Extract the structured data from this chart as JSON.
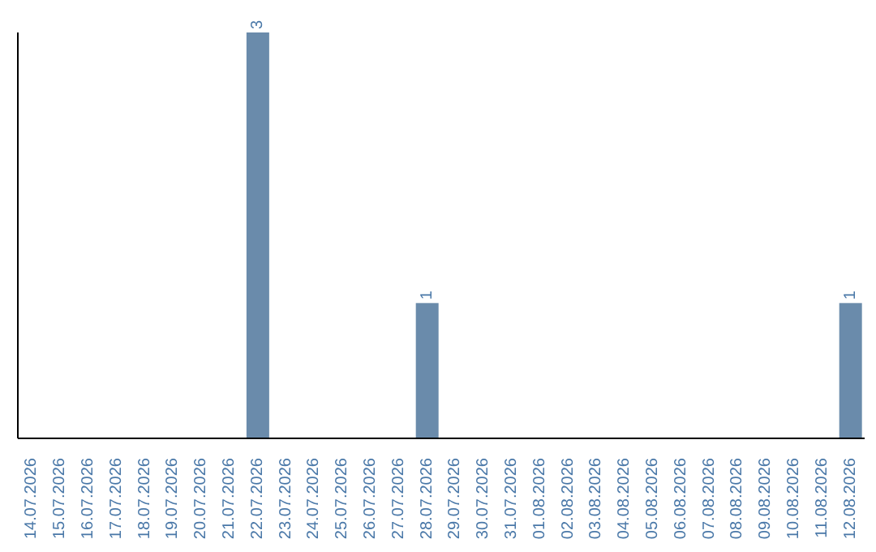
{
  "chart_data": {
    "type": "bar",
    "categories": [
      "14.07.2026",
      "15.07.2026",
      "16.07.2026",
      "17.07.2026",
      "18.07.2026",
      "19.07.2026",
      "20.07.2026",
      "21.07.2026",
      "22.07.2026",
      "23.07.2026",
      "24.07.2026",
      "25.07.2026",
      "26.07.2026",
      "27.07.2026",
      "28.07.2026",
      "29.07.2026",
      "30.07.2026",
      "31.07.2026",
      "01.08.2026",
      "02.08.2026",
      "03.08.2026",
      "04.08.2026",
      "05.08.2026",
      "06.08.2026",
      "07.08.2026",
      "08.08.2026",
      "09.08.2026",
      "10.08.2026",
      "11.08.2026",
      "12.08.2026"
    ],
    "values": [
      0,
      0,
      0,
      0,
      0,
      0,
      0,
      0,
      3,
      0,
      0,
      0,
      0,
      0,
      1,
      0,
      0,
      0,
      0,
      0,
      0,
      0,
      0,
      0,
      0,
      0,
      0,
      0,
      0,
      1
    ],
    "value_labels": [
      null,
      null,
      null,
      null,
      null,
      null,
      null,
      null,
      "3",
      null,
      null,
      null,
      null,
      null,
      "1",
      null,
      null,
      null,
      null,
      null,
      null,
      null,
      null,
      null,
      null,
      null,
      null,
      null,
      null,
      "1"
    ],
    "color": "#6a8bab",
    "tick_labels": "x"
  }
}
